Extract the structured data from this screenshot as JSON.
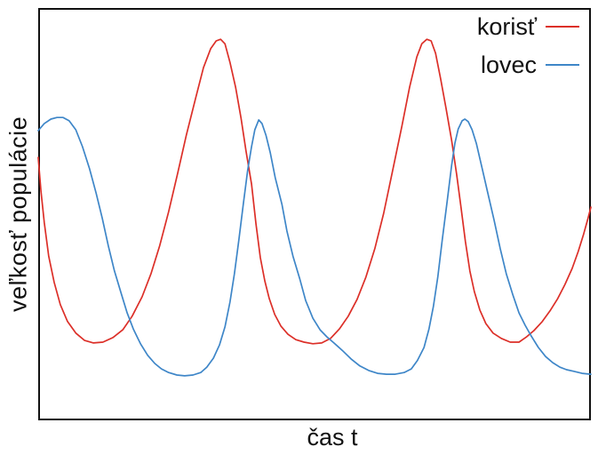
{
  "figure": {
    "background": "#ffffff",
    "frame_color": "#000000"
  },
  "chart_data": {
    "type": "line",
    "title": "",
    "xlabel": "čas t",
    "ylabel": "veľkosť populácie",
    "legend_position": "top-right-inside",
    "grid": false,
    "x_ticks": [],
    "y_ticks": [],
    "axes_note": "axes are unlabeled/unticked; values normalized: t 0-1 across plot, population 0-1 bottom-to-top",
    "series": [
      {
        "name": "korisť",
        "key": "prey",
        "color": "#dc2f28",
        "points": [
          [
            0.0,
            0.637
          ],
          [
            0.005,
            0.555
          ],
          [
            0.011,
            0.479
          ],
          [
            0.019,
            0.397
          ],
          [
            0.029,
            0.333
          ],
          [
            0.04,
            0.279
          ],
          [
            0.053,
            0.238
          ],
          [
            0.068,
            0.21
          ],
          [
            0.084,
            0.192
          ],
          [
            0.1,
            0.186
          ],
          [
            0.117,
            0.188
          ],
          [
            0.135,
            0.199
          ],
          [
            0.153,
            0.218
          ],
          [
            0.17,
            0.251
          ],
          [
            0.188,
            0.298
          ],
          [
            0.204,
            0.354
          ],
          [
            0.22,
            0.423
          ],
          [
            0.236,
            0.505
          ],
          [
            0.252,
            0.596
          ],
          [
            0.268,
            0.691
          ],
          [
            0.285,
            0.782
          ],
          [
            0.299,
            0.855
          ],
          [
            0.312,
            0.901
          ],
          [
            0.322,
            0.92
          ],
          [
            0.33,
            0.924
          ],
          [
            0.338,
            0.913
          ],
          [
            0.347,
            0.868
          ],
          [
            0.357,
            0.808
          ],
          [
            0.367,
            0.732
          ],
          [
            0.376,
            0.652
          ],
          [
            0.386,
            0.572
          ],
          [
            0.394,
            0.475
          ],
          [
            0.402,
            0.393
          ],
          [
            0.41,
            0.337
          ],
          [
            0.418,
            0.294
          ],
          [
            0.428,
            0.255
          ],
          [
            0.439,
            0.227
          ],
          [
            0.452,
            0.207
          ],
          [
            0.466,
            0.194
          ],
          [
            0.481,
            0.188
          ],
          [
            0.497,
            0.184
          ],
          [
            0.513,
            0.186
          ],
          [
            0.529,
            0.197
          ],
          [
            0.545,
            0.22
          ],
          [
            0.561,
            0.251
          ],
          [
            0.577,
            0.292
          ],
          [
            0.593,
            0.346
          ],
          [
            0.609,
            0.415
          ],
          [
            0.625,
            0.501
          ],
          [
            0.641,
            0.603
          ],
          [
            0.658,
            0.713
          ],
          [
            0.672,
            0.808
          ],
          [
            0.685,
            0.881
          ],
          [
            0.694,
            0.913
          ],
          [
            0.703,
            0.924
          ],
          [
            0.711,
            0.92
          ],
          [
            0.719,
            0.89
          ],
          [
            0.728,
            0.829
          ],
          [
            0.738,
            0.756
          ],
          [
            0.748,
            0.678
          ],
          [
            0.757,
            0.596
          ],
          [
            0.765,
            0.516
          ],
          [
            0.773,
            0.432
          ],
          [
            0.781,
            0.361
          ],
          [
            0.789,
            0.311
          ],
          [
            0.799,
            0.266
          ],
          [
            0.81,
            0.233
          ],
          [
            0.823,
            0.21
          ],
          [
            0.838,
            0.197
          ],
          [
            0.854,
            0.188
          ],
          [
            0.87,
            0.188
          ],
          [
            0.884,
            0.201
          ],
          [
            0.897,
            0.216
          ],
          [
            0.912,
            0.238
          ],
          [
            0.926,
            0.264
          ],
          [
            0.94,
            0.294
          ],
          [
            0.953,
            0.328
          ],
          [
            0.966,
            0.367
          ],
          [
            0.977,
            0.408
          ],
          [
            0.987,
            0.451
          ],
          [
            0.995,
            0.49
          ],
          [
            1.0,
            0.516
          ]
        ]
      },
      {
        "name": "lovec",
        "key": "predator",
        "color": "#3e86c8",
        "points": [
          [
            0.0,
            0.702
          ],
          [
            0.011,
            0.719
          ],
          [
            0.023,
            0.73
          ],
          [
            0.034,
            0.734
          ],
          [
            0.045,
            0.734
          ],
          [
            0.056,
            0.726
          ],
          [
            0.068,
            0.704
          ],
          [
            0.08,
            0.663
          ],
          [
            0.093,
            0.609
          ],
          [
            0.105,
            0.549
          ],
          [
            0.116,
            0.488
          ],
          [
            0.127,
            0.421
          ],
          [
            0.138,
            0.361
          ],
          [
            0.15,
            0.307
          ],
          [
            0.161,
            0.259
          ],
          [
            0.172,
            0.22
          ],
          [
            0.185,
            0.184
          ],
          [
            0.198,
            0.156
          ],
          [
            0.211,
            0.136
          ],
          [
            0.223,
            0.123
          ],
          [
            0.236,
            0.114
          ],
          [
            0.251,
            0.108
          ],
          [
            0.265,
            0.106
          ],
          [
            0.28,
            0.108
          ],
          [
            0.294,
            0.114
          ],
          [
            0.305,
            0.127
          ],
          [
            0.317,
            0.149
          ],
          [
            0.328,
            0.181
          ],
          [
            0.338,
            0.225
          ],
          [
            0.347,
            0.285
          ],
          [
            0.355,
            0.354
          ],
          [
            0.363,
            0.436
          ],
          [
            0.371,
            0.523
          ],
          [
            0.379,
            0.605
          ],
          [
            0.386,
            0.663
          ],
          [
            0.392,
            0.704
          ],
          [
            0.399,
            0.728
          ],
          [
            0.405,
            0.719
          ],
          [
            0.412,
            0.691
          ],
          [
            0.42,
            0.648
          ],
          [
            0.429,
            0.587
          ],
          [
            0.441,
            0.523
          ],
          [
            0.45,
            0.458
          ],
          [
            0.461,
            0.397
          ],
          [
            0.473,
            0.343
          ],
          [
            0.484,
            0.289
          ],
          [
            0.497,
            0.246
          ],
          [
            0.51,
            0.218
          ],
          [
            0.522,
            0.201
          ],
          [
            0.535,
            0.186
          ],
          [
            0.55,
            0.168
          ],
          [
            0.566,
            0.147
          ],
          [
            0.582,
            0.13
          ],
          [
            0.598,
            0.119
          ],
          [
            0.614,
            0.112
          ],
          [
            0.63,
            0.11
          ],
          [
            0.646,
            0.11
          ],
          [
            0.662,
            0.114
          ],
          [
            0.675,
            0.123
          ],
          [
            0.686,
            0.143
          ],
          [
            0.698,
            0.175
          ],
          [
            0.707,
            0.22
          ],
          [
            0.715,
            0.274
          ],
          [
            0.723,
            0.346
          ],
          [
            0.731,
            0.436
          ],
          [
            0.74,
            0.531
          ],
          [
            0.748,
            0.618
          ],
          [
            0.754,
            0.672
          ],
          [
            0.76,
            0.706
          ],
          [
            0.767,
            0.726
          ],
          [
            0.772,
            0.73
          ],
          [
            0.778,
            0.724
          ],
          [
            0.785,
            0.704
          ],
          [
            0.793,
            0.67
          ],
          [
            0.802,
            0.618
          ],
          [
            0.813,
            0.553
          ],
          [
            0.825,
            0.484
          ],
          [
            0.836,
            0.415
          ],
          [
            0.847,
            0.354
          ],
          [
            0.859,
            0.302
          ],
          [
            0.87,
            0.259
          ],
          [
            0.881,
            0.229
          ],
          [
            0.892,
            0.203
          ],
          [
            0.905,
            0.175
          ],
          [
            0.918,
            0.153
          ],
          [
            0.931,
            0.138
          ],
          [
            0.944,
            0.127
          ],
          [
            0.956,
            0.121
          ],
          [
            0.969,
            0.117
          ],
          [
            0.984,
            0.112
          ],
          [
            1.0,
            0.11
          ]
        ]
      }
    ]
  }
}
